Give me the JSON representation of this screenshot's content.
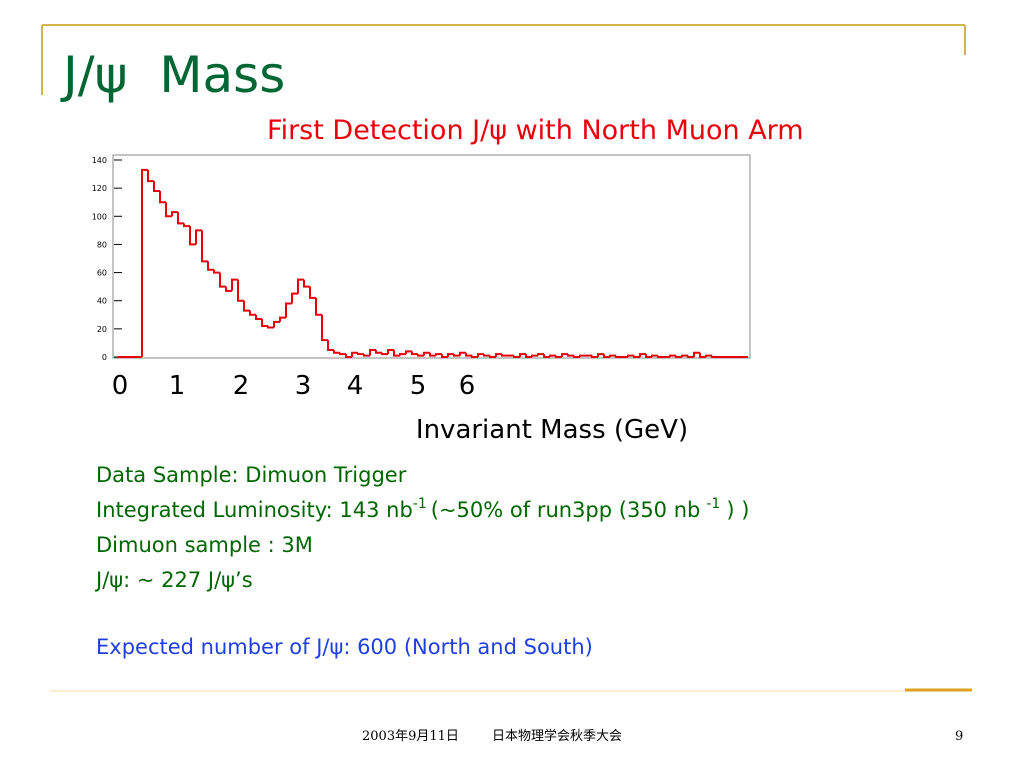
{
  "title": "J/ψ  Mass",
  "subtitle": "First Detection J/ψ with North Muon Arm",
  "chart_data": {
    "type": "histogram",
    "bins": [
      0,
      0.1,
      0.2,
      0.3,
      0.4,
      0.5,
      0.6,
      0.7,
      0.8,
      0.9,
      1,
      1.1,
      1.2,
      1.3,
      1.4,
      1.5,
      1.6,
      1.7,
      1.8,
      1.9,
      2,
      2.1,
      2.2,
      2.3,
      2.4,
      2.5,
      2.6,
      2.7,
      2.8,
      2.9,
      3,
      3.1,
      3.2,
      3.3,
      3.4,
      3.5,
      3.6,
      3.7,
      3.8,
      3.9,
      4,
      4.1,
      4.2,
      4.3,
      4.4,
      4.5,
      4.6,
      4.7,
      4.8,
      4.9,
      5,
      5.1,
      5.2,
      5.3,
      5.4,
      5.5,
      5.6,
      5.7,
      5.8,
      5.9,
      6,
      6.1,
      6.2,
      6.3,
      6.4,
      6.5,
      6.6,
      6.7,
      6.8,
      6.9,
      7,
      7.1,
      7.2,
      7.3,
      7.4,
      7.5,
      7.6,
      7.7,
      7.8,
      7.9,
      8,
      8.1,
      8.2,
      8.3,
      8.4,
      8.5,
      8.6,
      8.7,
      8.8,
      8.9,
      9,
      9.1,
      9.2,
      9.3,
      9.4,
      9.5,
      9.6,
      9.7,
      9.8,
      9.9,
      10,
      10.1,
      10.2,
      10.3,
      10.4,
      10.5
    ],
    "values": [
      0,
      0,
      0,
      0,
      133,
      125,
      118,
      110,
      100,
      103,
      95,
      93,
      80,
      90,
      68,
      62,
      60,
      50,
      47,
      55,
      40,
      33,
      30,
      27,
      22,
      21,
      25,
      28,
      38,
      45,
      55,
      50,
      42,
      30,
      12,
      5,
      3,
      2,
      0,
      3,
      2,
      1,
      5,
      3,
      2,
      5,
      1,
      2,
      4,
      2,
      1,
      3,
      1,
      2,
      0,
      2,
      1,
      3,
      1,
      0,
      2,
      1,
      0,
      2,
      1,
      1,
      0,
      2,
      0,
      1,
      2,
      0,
      1,
      0,
      2,
      1,
      0,
      1,
      1,
      0,
      2,
      0,
      1,
      0,
      0,
      1,
      0,
      2,
      0,
      1,
      0,
      0,
      1,
      0,
      1,
      0,
      3,
      0,
      1,
      0,
      0,
      0,
      0,
      0,
      0
    ],
    "color": "#e8000b",
    "xlim": [
      0,
      10.5
    ],
    "ylim": [
      0,
      140
    ],
    "yticks": [
      0,
      20,
      40,
      60,
      80,
      100,
      120,
      140
    ]
  },
  "axis_numbers": [
    "0",
    "1",
    "2",
    "3",
    "4",
    "5",
    "6"
  ],
  "axis_label": "Invariant Mass (GeV)",
  "notes": {
    "line1": "Data Sample: Dimuon Trigger",
    "line2": [
      "Integrated Luminosity: 143 nb",
      "-1",
      "(~50% of run3pp (350 nb",
      "-1",
      ") )"
    ],
    "line3": "Dimuon sample : 3M",
    "line4": "J/ψ: ~ 227 J/ψ’s",
    "expected": "Expected number of J/ψ: 600 (North and South)"
  },
  "footer": {
    "date": "2003年9月11日",
    "event": "日本物理学会秋季大会",
    "page": "9"
  }
}
